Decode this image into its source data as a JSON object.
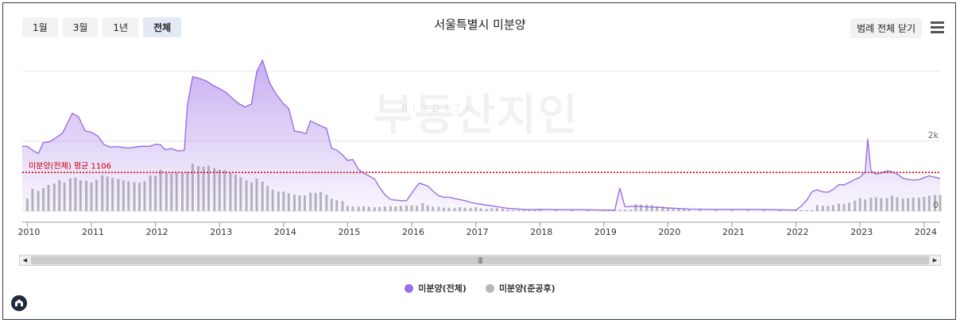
{
  "range_buttons": [
    "1월",
    "3월",
    "1년",
    "전체"
  ],
  "active_range": "전체",
  "legend_toggle_label": "범례 전체 닫기",
  "watermark": "부동산지인",
  "watermark_sub": "BIGDATA",
  "colors": {
    "total": "#9b6ee6",
    "completed": "#b7b7b7",
    "average": "#cc0000"
  },
  "chart_data": {
    "type": "area",
    "title": "서울특별시 미분양",
    "x_labels": [
      "2010",
      "2011",
      "2012",
      "2013",
      "2014",
      "2015",
      "2016",
      "2017",
      "2018",
      "2019",
      "2020",
      "2021",
      "2022",
      "2023",
      "2024"
    ],
    "x_range": [
      2009.92,
      2024.25
    ],
    "y_labels": [
      "0",
      "2k"
    ],
    "y_range": [
      0,
      4000
    ],
    "average": {
      "label": "미분양(전체) 평균 1106",
      "value": 1106
    },
    "legend_position": "bottom-center",
    "series": [
      {
        "name": "미분양(전체)",
        "kind": "area",
        "points": [
          [
            2009.92,
            1860
          ],
          [
            2010.0,
            1850
          ],
          [
            2010.1,
            1720
          ],
          [
            2010.17,
            1650
          ],
          [
            2010.25,
            1960
          ],
          [
            2010.35,
            1990
          ],
          [
            2010.45,
            2100
          ],
          [
            2010.55,
            2240
          ],
          [
            2010.62,
            2500
          ],
          [
            2010.7,
            2800
          ],
          [
            2010.8,
            2700
          ],
          [
            2010.9,
            2300
          ],
          [
            2011.0,
            2260
          ],
          [
            2011.1,
            2150
          ],
          [
            2011.2,
            1900
          ],
          [
            2011.3,
            1830
          ],
          [
            2011.4,
            1850
          ],
          [
            2011.5,
            1820
          ],
          [
            2011.6,
            1810
          ],
          [
            2011.7,
            1840
          ],
          [
            2011.8,
            1860
          ],
          [
            2011.9,
            1850
          ],
          [
            2012.0,
            1910
          ],
          [
            2012.08,
            1900
          ],
          [
            2012.15,
            1760
          ],
          [
            2012.25,
            1790
          ],
          [
            2012.35,
            1720
          ],
          [
            2012.45,
            1740
          ],
          [
            2012.5,
            3050
          ],
          [
            2012.58,
            3850
          ],
          [
            2012.7,
            3790
          ],
          [
            2012.8,
            3720
          ],
          [
            2012.9,
            3600
          ],
          [
            2013.0,
            3510
          ],
          [
            2013.1,
            3400
          ],
          [
            2013.2,
            3230
          ],
          [
            2013.3,
            3080
          ],
          [
            2013.4,
            2980
          ],
          [
            2013.5,
            3070
          ],
          [
            2013.58,
            3990
          ],
          [
            2013.67,
            4320
          ],
          [
            2013.78,
            3680
          ],
          [
            2013.88,
            3360
          ],
          [
            2014.0,
            3070
          ],
          [
            2014.08,
            2940
          ],
          [
            2014.17,
            2290
          ],
          [
            2014.25,
            2270
          ],
          [
            2014.35,
            2220
          ],
          [
            2014.42,
            2580
          ],
          [
            2014.58,
            2440
          ],
          [
            2014.67,
            2370
          ],
          [
            2014.75,
            1800
          ],
          [
            2014.83,
            1750
          ],
          [
            2014.92,
            1610
          ],
          [
            2015.0,
            1450
          ],
          [
            2015.08,
            1480
          ],
          [
            2015.17,
            1190
          ],
          [
            2015.25,
            1090
          ],
          [
            2015.35,
            990
          ],
          [
            2015.42,
            920
          ],
          [
            2015.5,
            680
          ],
          [
            2015.58,
            470
          ],
          [
            2015.67,
            330
          ],
          [
            2015.83,
            300
          ],
          [
            2015.92,
            300
          ],
          [
            2016.0,
            510
          ],
          [
            2016.08,
            720
          ],
          [
            2016.12,
            800
          ],
          [
            2016.25,
            720
          ],
          [
            2016.33,
            580
          ],
          [
            2016.42,
            440
          ],
          [
            2016.5,
            400
          ],
          [
            2016.58,
            400
          ],
          [
            2016.67,
            360
          ],
          [
            2016.83,
            300
          ],
          [
            2016.92,
            250
          ],
          [
            2017.0,
            220
          ],
          [
            2017.17,
            170
          ],
          [
            2017.33,
            130
          ],
          [
            2017.5,
            80
          ],
          [
            2017.67,
            60
          ],
          [
            2017.83,
            40
          ],
          [
            2018.0,
            50
          ],
          [
            2018.33,
            40
          ],
          [
            2018.67,
            40
          ],
          [
            2019.0,
            30
          ],
          [
            2019.17,
            30
          ],
          [
            2019.25,
            660
          ],
          [
            2019.33,
            120
          ],
          [
            2019.5,
            140
          ],
          [
            2019.67,
            120
          ],
          [
            2019.83,
            110
          ],
          [
            2020.0,
            90
          ],
          [
            2020.33,
            60
          ],
          [
            2020.67,
            50
          ],
          [
            2021.0,
            50
          ],
          [
            2021.33,
            50
          ],
          [
            2021.67,
            40
          ],
          [
            2022.0,
            30
          ],
          [
            2022.08,
            140
          ],
          [
            2022.17,
            320
          ],
          [
            2022.25,
            560
          ],
          [
            2022.33,
            610
          ],
          [
            2022.42,
            550
          ],
          [
            2022.5,
            540
          ],
          [
            2022.58,
            620
          ],
          [
            2022.67,
            760
          ],
          [
            2022.75,
            750
          ],
          [
            2022.83,
            820
          ],
          [
            2022.92,
            910
          ],
          [
            2023.0,
            970
          ],
          [
            2023.08,
            1120
          ],
          [
            2023.12,
            2070
          ],
          [
            2023.17,
            1140
          ],
          [
            2023.25,
            1060
          ],
          [
            2023.33,
            1090
          ],
          [
            2023.42,
            1150
          ],
          [
            2023.5,
            1130
          ],
          [
            2023.58,
            1060
          ],
          [
            2023.67,
            940
          ],
          [
            2023.75,
            910
          ],
          [
            2023.83,
            890
          ],
          [
            2023.92,
            900
          ],
          [
            2024.0,
            960
          ],
          [
            2024.08,
            1010
          ],
          [
            2024.17,
            970
          ],
          [
            2024.25,
            930
          ]
        ]
      },
      {
        "name": "미분양(준공후)",
        "kind": "bar",
        "points": [
          [
            2010.0,
            360
          ],
          [
            2010.08,
            640
          ],
          [
            2010.17,
            580
          ],
          [
            2010.25,
            660
          ],
          [
            2010.33,
            750
          ],
          [
            2010.42,
            790
          ],
          [
            2010.5,
            890
          ],
          [
            2010.58,
            820
          ],
          [
            2010.67,
            940
          ],
          [
            2010.75,
            960
          ],
          [
            2010.83,
            880
          ],
          [
            2010.92,
            870
          ],
          [
            2011.0,
            820
          ],
          [
            2011.08,
            900
          ],
          [
            2011.17,
            1030
          ],
          [
            2011.25,
            990
          ],
          [
            2011.33,
            950
          ],
          [
            2011.42,
            920
          ],
          [
            2011.5,
            880
          ],
          [
            2011.58,
            850
          ],
          [
            2011.67,
            830
          ],
          [
            2011.75,
            810
          ],
          [
            2011.83,
            850
          ],
          [
            2011.92,
            1020
          ],
          [
            2012.0,
            1010
          ],
          [
            2012.08,
            1180
          ],
          [
            2012.17,
            1100
          ],
          [
            2012.25,
            1080
          ],
          [
            2012.33,
            1100
          ],
          [
            2012.42,
            1090
          ],
          [
            2012.5,
            1120
          ],
          [
            2012.58,
            1360
          ],
          [
            2012.67,
            1290
          ],
          [
            2012.75,
            1270
          ],
          [
            2012.83,
            1300
          ],
          [
            2012.92,
            1230
          ],
          [
            2013.0,
            1190
          ],
          [
            2013.08,
            1170
          ],
          [
            2013.17,
            1100
          ],
          [
            2013.25,
            1040
          ],
          [
            2013.33,
            970
          ],
          [
            2013.42,
            880
          ],
          [
            2013.5,
            820
          ],
          [
            2013.58,
            930
          ],
          [
            2013.67,
            840
          ],
          [
            2013.75,
            720
          ],
          [
            2013.83,
            610
          ],
          [
            2013.92,
            560
          ],
          [
            2014.0,
            560
          ],
          [
            2014.08,
            510
          ],
          [
            2014.17,
            470
          ],
          [
            2014.25,
            450
          ],
          [
            2014.33,
            450
          ],
          [
            2014.42,
            530
          ],
          [
            2014.5,
            520
          ],
          [
            2014.58,
            550
          ],
          [
            2014.67,
            470
          ],
          [
            2014.75,
            350
          ],
          [
            2014.83,
            310
          ],
          [
            2014.92,
            290
          ],
          [
            2015.0,
            150
          ],
          [
            2015.08,
            130
          ],
          [
            2015.17,
            130
          ],
          [
            2015.25,
            140
          ],
          [
            2015.33,
            130
          ],
          [
            2015.42,
            110
          ],
          [
            2015.5,
            120
          ],
          [
            2015.58,
            130
          ],
          [
            2015.67,
            140
          ],
          [
            2015.75,
            130
          ],
          [
            2015.83,
            150
          ],
          [
            2015.92,
            160
          ],
          [
            2016.0,
            160
          ],
          [
            2016.08,
            150
          ],
          [
            2016.17,
            230
          ],
          [
            2016.25,
            160
          ],
          [
            2016.33,
            130
          ],
          [
            2016.42,
            120
          ],
          [
            2016.5,
            100
          ],
          [
            2016.58,
            100
          ],
          [
            2016.67,
            90
          ],
          [
            2016.75,
            110
          ],
          [
            2016.83,
            100
          ],
          [
            2016.92,
            90
          ],
          [
            2017.0,
            110
          ],
          [
            2017.08,
            80
          ],
          [
            2017.17,
            60
          ],
          [
            2017.25,
            80
          ],
          [
            2017.33,
            90
          ],
          [
            2017.42,
            70
          ],
          [
            2017.5,
            40
          ],
          [
            2017.58,
            30
          ],
          [
            2017.67,
            30
          ],
          [
            2017.75,
            30
          ],
          [
            2017.83,
            30
          ],
          [
            2017.92,
            30
          ],
          [
            2018.0,
            30
          ],
          [
            2018.25,
            30
          ],
          [
            2018.5,
            30
          ],
          [
            2018.75,
            30
          ],
          [
            2019.0,
            30
          ],
          [
            2019.08,
            40
          ],
          [
            2019.17,
            40
          ],
          [
            2019.25,
            40
          ],
          [
            2019.33,
            40
          ],
          [
            2019.42,
            40
          ],
          [
            2019.5,
            200
          ],
          [
            2019.58,
            190
          ],
          [
            2019.67,
            190
          ],
          [
            2019.75,
            170
          ],
          [
            2019.83,
            140
          ],
          [
            2019.92,
            130
          ],
          [
            2020.0,
            100
          ],
          [
            2020.08,
            90
          ],
          [
            2020.17,
            70
          ],
          [
            2020.25,
            60
          ],
          [
            2020.33,
            50
          ],
          [
            2020.5,
            40
          ],
          [
            2020.75,
            40
          ],
          [
            2021.0,
            40
          ],
          [
            2021.25,
            40
          ],
          [
            2021.5,
            40
          ],
          [
            2021.75,
            40
          ],
          [
            2022.0,
            40
          ],
          [
            2022.08,
            30
          ],
          [
            2022.17,
            30
          ],
          [
            2022.25,
            30
          ],
          [
            2022.33,
            170
          ],
          [
            2022.42,
            150
          ],
          [
            2022.5,
            150
          ],
          [
            2022.58,
            170
          ],
          [
            2022.67,
            210
          ],
          [
            2022.75,
            200
          ],
          [
            2022.83,
            240
          ],
          [
            2022.92,
            300
          ],
          [
            2023.0,
            370
          ],
          [
            2023.08,
            330
          ],
          [
            2023.17,
            380
          ],
          [
            2023.25,
            390
          ],
          [
            2023.33,
            370
          ],
          [
            2023.42,
            380
          ],
          [
            2023.5,
            440
          ],
          [
            2023.58,
            400
          ],
          [
            2023.67,
            360
          ],
          [
            2023.75,
            370
          ],
          [
            2023.83,
            390
          ],
          [
            2023.92,
            380
          ],
          [
            2024.0,
            410
          ],
          [
            2024.08,
            440
          ],
          [
            2024.17,
            460
          ],
          [
            2024.25,
            460
          ]
        ]
      }
    ]
  }
}
